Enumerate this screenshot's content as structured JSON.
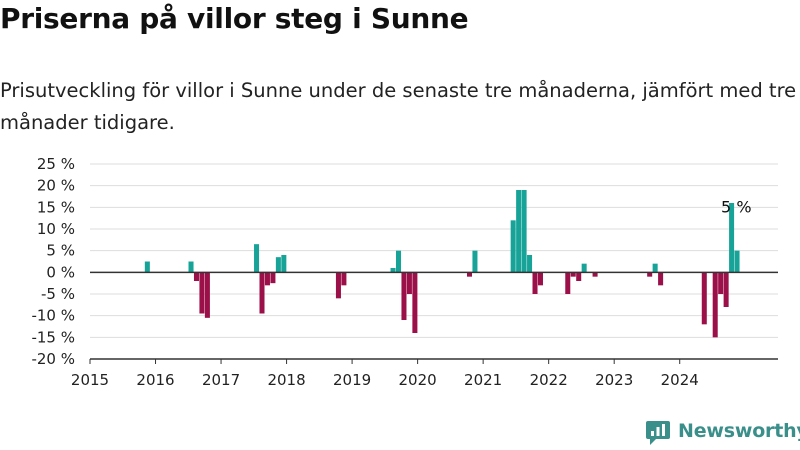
{
  "header": {
    "title": "Priserna på villor steg i Sunne",
    "subtitle": "Prisutveckling för villor i Sunne under de senaste tre månaderna, jämfört med tre månader tidigare."
  },
  "brand": {
    "name": "Newsworthy"
  },
  "colors": {
    "positive": "#17a398",
    "negative": "#9c1049",
    "grid": "#dddddd",
    "axis": "#333333",
    "logo": "#3a8f8a"
  },
  "chart_data": {
    "type": "bar",
    "title": "",
    "xlabel": "",
    "ylabel": "",
    "y_unit": "%",
    "ylim": [
      -20,
      25
    ],
    "y_ticks": [
      -20,
      -15,
      -10,
      -5,
      0,
      5,
      10,
      15,
      20,
      25
    ],
    "y_tick_labels": [
      "-20 %",
      "-15 %",
      "-10 %",
      "-5 %",
      "0 %",
      "5 %",
      "10 %",
      "15 %",
      "20 %",
      "25 %"
    ],
    "x_range": [
      "2015-01",
      "2025-07"
    ],
    "x_ticks": [
      2015,
      2016,
      2017,
      2018,
      2019,
      2020,
      2021,
      2022,
      2023,
      2024
    ],
    "x_tick_labels": [
      "2015",
      "2016",
      "2017",
      "2018",
      "2019",
      "2020",
      "2021",
      "2022",
      "2023",
      "2024"
    ],
    "grid": true,
    "legend": "none",
    "bars": [
      {
        "x": "2015-11",
        "y": 2.5
      },
      {
        "x": "2016-07",
        "y": 2.5
      },
      {
        "x": "2016-08",
        "y": -2
      },
      {
        "x": "2016-09",
        "y": -9.5
      },
      {
        "x": "2016-10",
        "y": -10.5
      },
      {
        "x": "2017-07",
        "y": 6.5
      },
      {
        "x": "2017-08",
        "y": -9.5
      },
      {
        "x": "2017-09",
        "y": -3
      },
      {
        "x": "2017-10",
        "y": -2.5
      },
      {
        "x": "2017-11",
        "y": 3.5
      },
      {
        "x": "2017-12",
        "y": 4
      },
      {
        "x": "2018-10",
        "y": -6
      },
      {
        "x": "2018-11",
        "y": -3
      },
      {
        "x": "2019-08",
        "y": 1
      },
      {
        "x": "2019-09",
        "y": 5
      },
      {
        "x": "2019-10",
        "y": -11
      },
      {
        "x": "2019-11",
        "y": -5
      },
      {
        "x": "2019-12",
        "y": -14
      },
      {
        "x": "2020-10",
        "y": -1
      },
      {
        "x": "2020-11",
        "y": 5
      },
      {
        "x": "2021-06",
        "y": 12
      },
      {
        "x": "2021-07",
        "y": 19
      },
      {
        "x": "2021-08",
        "y": 19
      },
      {
        "x": "2021-09",
        "y": 4
      },
      {
        "x": "2021-10",
        "y": -5
      },
      {
        "x": "2021-11",
        "y": -3
      },
      {
        "x": "2022-04",
        "y": -5
      },
      {
        "x": "2022-05",
        "y": -1
      },
      {
        "x": "2022-06",
        "y": -2
      },
      {
        "x": "2022-07",
        "y": 2
      },
      {
        "x": "2022-09",
        "y": -1
      },
      {
        "x": "2023-07",
        "y": -1
      },
      {
        "x": "2023-08",
        "y": 2
      },
      {
        "x": "2023-09",
        "y": -3
      },
      {
        "x": "2024-05",
        "y": -12
      },
      {
        "x": "2024-07",
        "y": -15
      },
      {
        "x": "2024-08",
        "y": -5
      },
      {
        "x": "2024-09",
        "y": -8
      },
      {
        "x": "2024-10",
        "y": 16
      },
      {
        "x": "2024-11",
        "y": 5
      }
    ],
    "annotation": {
      "x": "2024-11",
      "y": 5,
      "text": "5 %"
    }
  }
}
